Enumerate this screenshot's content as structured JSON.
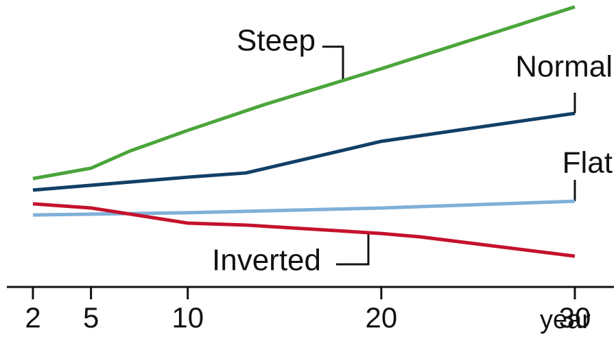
{
  "chart_data": {
    "type": "line",
    "xlabel": "year",
    "xlim": [
      2,
      30
    ],
    "xticks": [
      2,
      5,
      10,
      20,
      30
    ],
    "ylim": [
      0,
      100
    ],
    "series": [
      {
        "name": "Steep",
        "color": "#4aa53a",
        "x": [
          2,
          5,
          7,
          10,
          14,
          20,
          30
        ],
        "values": [
          38.7,
          42.4,
          48.5,
          55.9,
          65.2,
          77.9,
          100
        ]
      },
      {
        "name": "Normal",
        "color": "#123f66",
        "x": [
          2,
          5,
          10,
          13,
          20,
          30
        ],
        "values": [
          34.6,
          36.3,
          39.2,
          40.7,
          52.0,
          62.0
        ]
      },
      {
        "name": "Flat",
        "color": "#7fb0d8",
        "x": [
          2,
          10,
          20,
          30
        ],
        "values": [
          25.7,
          26.5,
          28.2,
          30.6
        ]
      },
      {
        "name": "Inverted",
        "color": "#c4122c",
        "x": [
          2,
          5,
          10,
          13,
          20,
          22,
          30
        ],
        "values": [
          29.7,
          28.2,
          22.8,
          22.1,
          19.1,
          17.9,
          11.0
        ]
      }
    ]
  }
}
